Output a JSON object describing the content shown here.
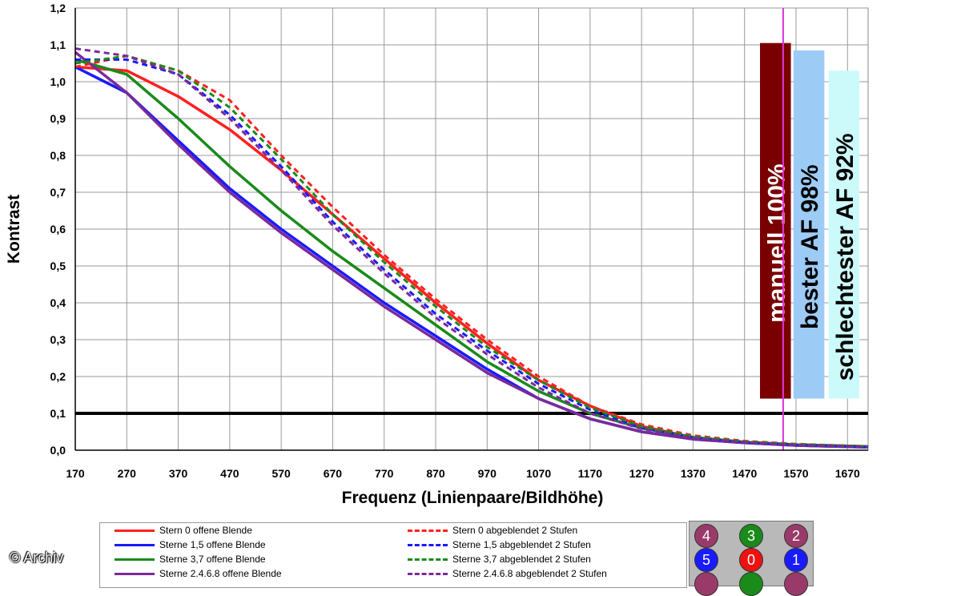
{
  "chart_data": {
    "type": "line",
    "xlabel": "Frequenz (Linienpaare/Bildhöhe)",
    "ylabel": "Kontrast",
    "xlim": [
      170,
      1710
    ],
    "ylim": [
      0,
      1.2
    ],
    "x_ticks": [
      "170",
      "270",
      "370",
      "470",
      "570",
      "670",
      "770",
      "870",
      "970",
      "1070",
      "1170",
      "1270",
      "1370",
      "1470",
      "1570",
      "1670"
    ],
    "y_ticks": [
      "0,0",
      "0,1",
      "0,2",
      "0,3",
      "0,4",
      "0,5",
      "0,6",
      "0,7",
      "0,8",
      "0,9",
      "1,0",
      "1,1",
      "1,2"
    ],
    "grid": true,
    "threshold_line": {
      "y": 0.1,
      "color": "#000000"
    },
    "vertical_marker": {
      "x": 1545,
      "color": "#dd33dd"
    },
    "series": [
      {
        "name": "Stern 0 offene Blende",
        "color": "#ff2020",
        "dash": false,
        "x": [
          170,
          270,
          370,
          470,
          570,
          670,
          770,
          870,
          970,
          1070,
          1170,
          1270,
          1370,
          1470,
          1570,
          1710
        ],
        "values": [
          1.04,
          1.03,
          0.96,
          0.87,
          0.76,
          0.64,
          0.52,
          0.4,
          0.29,
          0.19,
          0.12,
          0.065,
          0.035,
          0.022,
          0.015,
          0.01
        ]
      },
      {
        "name": "Sterne 1,5 offene Blende",
        "color": "#1a1aff",
        "dash": false,
        "x": [
          170,
          270,
          370,
          470,
          570,
          670,
          770,
          870,
          970,
          1070,
          1170,
          1270,
          1370,
          1470,
          1570,
          1710
        ],
        "values": [
          1.04,
          0.97,
          0.84,
          0.71,
          0.6,
          0.5,
          0.4,
          0.31,
          0.22,
          0.14,
          0.085,
          0.05,
          0.03,
          0.02,
          0.013,
          0.008
        ]
      },
      {
        "name": "Sterne 3,7 offene Blende",
        "color": "#1a8a1a",
        "dash": false,
        "x": [
          170,
          270,
          370,
          470,
          570,
          670,
          770,
          870,
          970,
          1070,
          1170,
          1270,
          1370,
          1470,
          1570,
          1710
        ],
        "values": [
          1.06,
          1.02,
          0.9,
          0.77,
          0.65,
          0.54,
          0.44,
          0.34,
          0.24,
          0.16,
          0.1,
          0.06,
          0.035,
          0.022,
          0.015,
          0.01
        ]
      },
      {
        "name": "Sterne 2.4.6.8 offene Blende",
        "color": "#7a2a9a",
        "dash": false,
        "x": [
          170,
          270,
          370,
          470,
          570,
          670,
          770,
          870,
          970,
          1070,
          1170,
          1270,
          1370,
          1470,
          1570,
          1710
        ],
        "values": [
          1.08,
          0.97,
          0.83,
          0.7,
          0.59,
          0.49,
          0.39,
          0.3,
          0.21,
          0.14,
          0.085,
          0.05,
          0.03,
          0.02,
          0.013,
          0.008
        ]
      },
      {
        "name": "Stern 0 abgeblendet 2 Stufen",
        "color": "#ff2020",
        "dash": true,
        "x": [
          170,
          270,
          370,
          470,
          570,
          670,
          770,
          870,
          970,
          1070,
          1170,
          1270,
          1370,
          1470,
          1570,
          1710
        ],
        "values": [
          1.04,
          1.07,
          1.03,
          0.95,
          0.8,
          0.66,
          0.53,
          0.41,
          0.3,
          0.2,
          0.12,
          0.07,
          0.04,
          0.025,
          0.017,
          0.01
        ]
      },
      {
        "name": "Sterne 1,5 abgeblendet 2 Stufen",
        "color": "#1a1aff",
        "dash": true,
        "x": [
          170,
          270,
          370,
          470,
          570,
          670,
          770,
          870,
          970,
          1070,
          1170,
          1270,
          1370,
          1470,
          1570,
          1710
        ],
        "values": [
          1.06,
          1.06,
          1.02,
          0.91,
          0.77,
          0.62,
          0.49,
          0.37,
          0.27,
          0.18,
          0.11,
          0.06,
          0.035,
          0.022,
          0.015,
          0.009
        ]
      },
      {
        "name": "Sterne 3,7 abgeblendet 2 Stufen",
        "color": "#1a8a1a",
        "dash": true,
        "x": [
          170,
          270,
          370,
          470,
          570,
          670,
          770,
          870,
          970,
          1070,
          1170,
          1270,
          1370,
          1470,
          1570,
          1710
        ],
        "values": [
          1.05,
          1.07,
          1.03,
          0.93,
          0.79,
          0.64,
          0.51,
          0.39,
          0.28,
          0.19,
          0.115,
          0.065,
          0.037,
          0.023,
          0.016,
          0.01
        ]
      },
      {
        "name": "Sterne 2.4.6.8 abgeblendet 2 Stufen",
        "color": "#7a2a9a",
        "dash": true,
        "x": [
          170,
          270,
          370,
          470,
          570,
          670,
          770,
          870,
          970,
          1070,
          1170,
          1270,
          1370,
          1470,
          1570,
          1710
        ],
        "values": [
          1.09,
          1.07,
          1.02,
          0.9,
          0.76,
          0.61,
          0.48,
          0.36,
          0.26,
          0.17,
          0.1,
          0.058,
          0.033,
          0.021,
          0.014,
          0.009
        ]
      }
    ],
    "bars": [
      {
        "label": "manuell 100%",
        "x_from": 1500,
        "x_to": 1560,
        "value": 1.105,
        "bottom": 0.14,
        "color": "#7a0000",
        "text_color": "#ffffff"
      },
      {
        "label": "bester AF 98%",
        "x_from": 1565,
        "x_to": 1625,
        "value": 1.085,
        "bottom": 0.14,
        "color": "#9ccbf5",
        "text_color": "#000000"
      },
      {
        "label": "schlechtester AF 92%",
        "x_from": 1633,
        "x_to": 1693,
        "value": 1.03,
        "bottom": 0.14,
        "color": "#ccfafa",
        "text_color": "#000000"
      }
    ]
  },
  "legend": {
    "items": [
      {
        "label": "Stern 0 offene Blende",
        "color": "#ff2020",
        "dash": false
      },
      {
        "label": "Sterne 1,5 offene Blende",
        "color": "#1a1aff",
        "dash": false
      },
      {
        "label": "Sterne 3,7 offene Blende",
        "color": "#1a8a1a",
        "dash": false
      },
      {
        "label": "Sterne 2.4.6.8 offene Blende",
        "color": "#7a2a9a",
        "dash": false
      },
      {
        "label": "Stern 0 abgeblendet 2 Stufen",
        "color": "#ff2020",
        "dash": true
      },
      {
        "label": "Sterne 1,5 abgeblendet 2 Stufen",
        "color": "#1a1aff",
        "dash": true
      },
      {
        "label": "Sterne 3,7 abgeblendet 2 Stufen",
        "color": "#1a8a1a",
        "dash": true
      },
      {
        "label": "Sterne 2.4.6.8 abgeblendet 2 Stufen",
        "color": "#7a2a9a",
        "dash": true
      }
    ]
  },
  "star_panel": {
    "stars": [
      {
        "label": "4",
        "color": "#9a3a6a"
      },
      {
        "label": "3",
        "color": "#1a8a1a"
      },
      {
        "label": "2",
        "color": "#9a3a6a"
      },
      {
        "label": "5",
        "color": "#1a1aff"
      },
      {
        "label": "0",
        "color": "#ee1111"
      },
      {
        "label": "1",
        "color": "#1a1aff"
      },
      {
        "label": "",
        "color": "#9a3a6a"
      },
      {
        "label": "",
        "color": "#1a8a1a"
      },
      {
        "label": "",
        "color": "#9a3a6a"
      }
    ]
  },
  "copyright": "© Archiv"
}
